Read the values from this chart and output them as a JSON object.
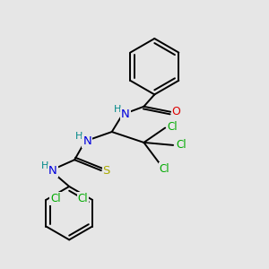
{
  "background_color": "#e6e6e6",
  "atom_colors": {
    "C": "#000000",
    "N": "#0000dd",
    "O": "#dd0000",
    "S": "#aaaa00",
    "Cl": "#00aa00",
    "H": "#008888"
  },
  "bond_color": "#000000",
  "lw": 1.4
}
